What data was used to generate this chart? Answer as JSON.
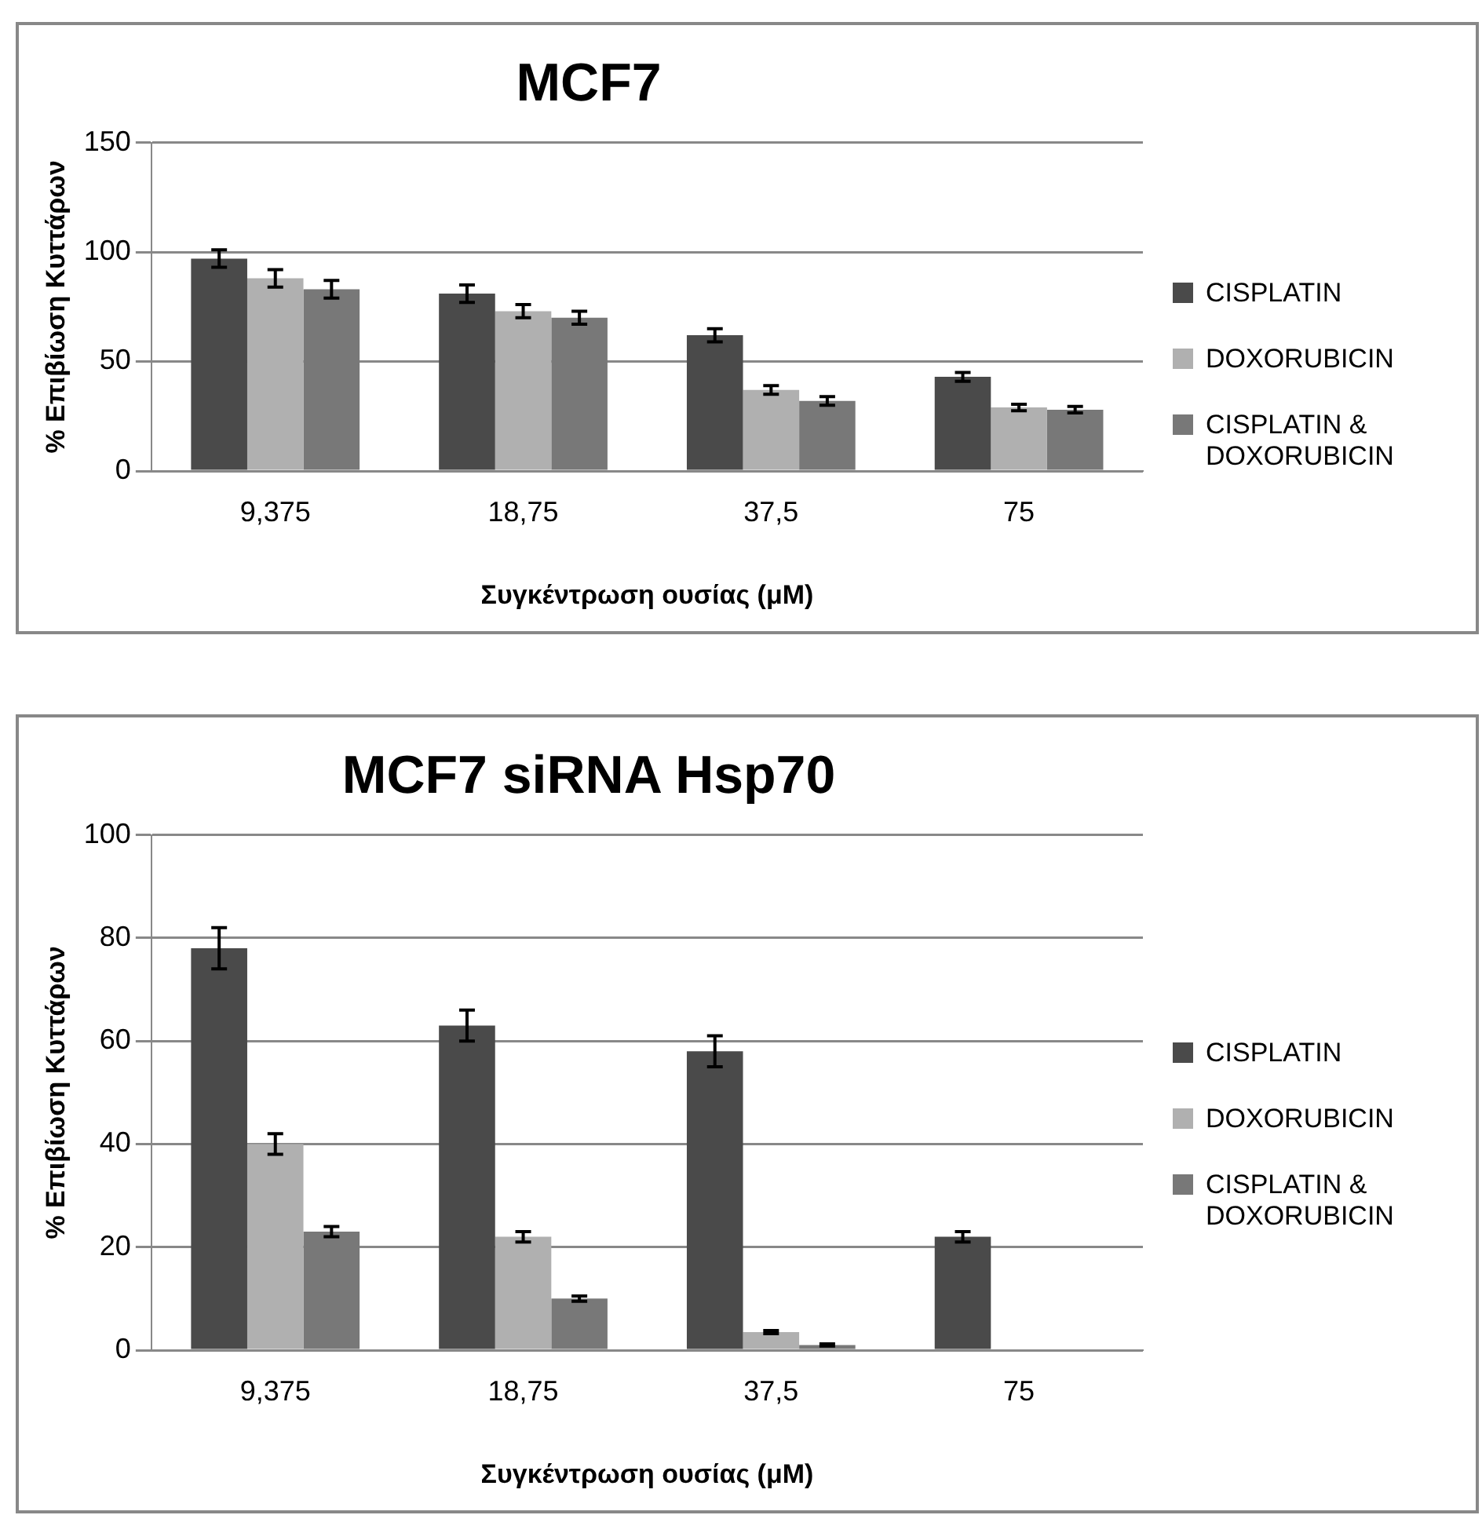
{
  "chart_data": [
    {
      "type": "bar",
      "title": "MCF7",
      "xlabel": "Συγκέντρωση ουσίας (μM)",
      "ylabel": "% Επιβίωση Κυττάρων",
      "categories": [
        "9,375",
        "18,75",
        "37,5",
        "75"
      ],
      "series": [
        {
          "name": "CISPLATIN",
          "color": "#4a4a4a",
          "values": [
            97,
            81,
            62,
            43
          ],
          "errors": [
            4,
            4,
            3,
            2
          ]
        },
        {
          "name": "DOXORUBICIN",
          "color": "#b0b0b0",
          "values": [
            88,
            73,
            37,
            29
          ],
          "errors": [
            4,
            3,
            2,
            1.5
          ]
        },
        {
          "name": "CISPLATIN & DOXORUBICIN",
          "color": "#787878",
          "values": [
            83,
            70,
            32,
            28
          ],
          "errors": [
            4,
            3,
            2,
            1.5
          ]
        }
      ],
      "ylim": [
        0,
        150
      ],
      "yticks": [
        0,
        50,
        100,
        150
      ],
      "grid": "y",
      "legend": "right"
    },
    {
      "type": "bar",
      "title": "MCF7 siRNA Hsp70",
      "xlabel": "Συγκέντρωση ουσίας (μM)",
      "ylabel": "% Επιβίωση Κυττάρων",
      "categories": [
        "9,375",
        "18,75",
        "37,5",
        "75"
      ],
      "series": [
        {
          "name": "CISPLATIN",
          "color": "#4a4a4a",
          "values": [
            78,
            63,
            58,
            22
          ],
          "errors": [
            4,
            3,
            3,
            1
          ]
        },
        {
          "name": "DOXORUBICIN",
          "color": "#b0b0b0",
          "values": [
            40,
            22,
            3.5,
            0
          ],
          "errors": [
            2,
            1,
            0.3,
            null
          ]
        },
        {
          "name": "CISPLATIN & DOXORUBICIN",
          "color": "#787878",
          "values": [
            23,
            10,
            1,
            0
          ],
          "errors": [
            1,
            0.5,
            0.2,
            null
          ]
        }
      ],
      "ylim": [
        0,
        100
      ],
      "yticks": [
        0,
        20,
        40,
        60,
        80,
        100
      ],
      "grid": "y",
      "legend": "right"
    }
  ]
}
